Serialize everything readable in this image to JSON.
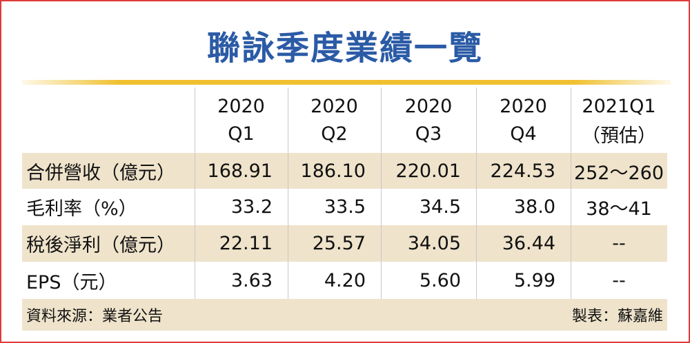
{
  "title": "聯詠季度業績一覽",
  "table": {
    "columns": [
      [
        "2020",
        "Q1"
      ],
      [
        "2020",
        "Q2"
      ],
      [
        "2020",
        "Q3"
      ],
      [
        "2020",
        "Q4"
      ],
      [
        "2021Q1",
        "（預估）"
      ]
    ],
    "rows": [
      {
        "label": "合併營收（億元）",
        "values": [
          "168.91",
          "186.10",
          "220.01",
          "224.53",
          "252～260"
        ]
      },
      {
        "label": "毛利率（%）",
        "values": [
          "33.2",
          "33.5",
          "34.5",
          "38.0",
          "38～41"
        ]
      },
      {
        "label": "稅後淨利（億元）",
        "values": [
          "22.11",
          "25.57",
          "34.05",
          "36.44",
          "--"
        ]
      },
      {
        "label": "EPS（元）",
        "values": [
          "3.63",
          "4.20",
          "5.60",
          "5.99",
          "--"
        ]
      }
    ]
  },
  "footer": {
    "source": "資料來源：業者公告",
    "credit": "製表：蘇嘉維"
  }
}
